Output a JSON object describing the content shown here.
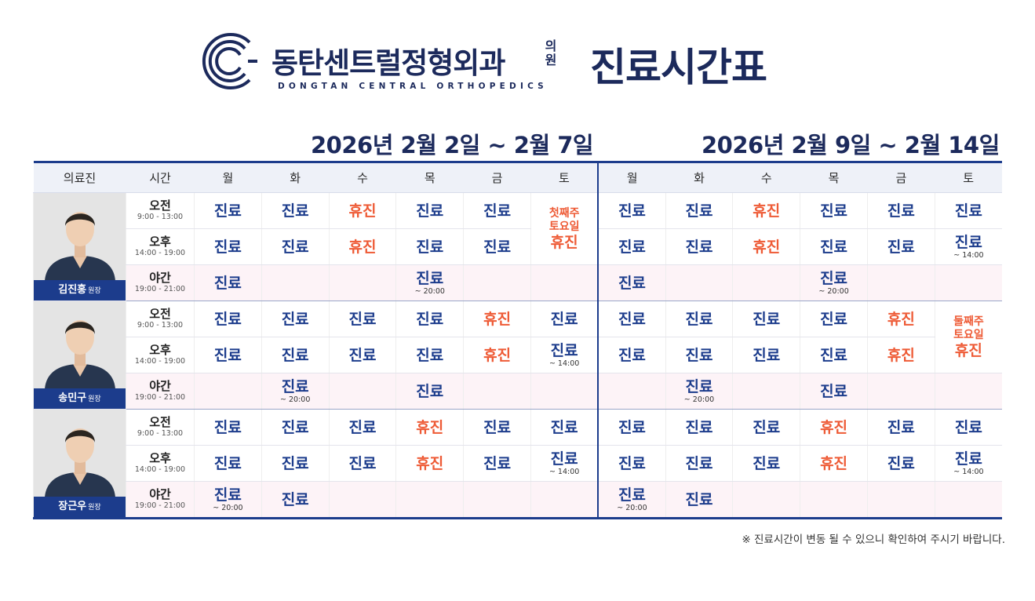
{
  "header": {
    "brand_ko": "동탄센트럴정형외과",
    "brand_ui": "의원",
    "brand_en": "DONGTAN CENTRAL ORTHOPEDICS",
    "title": "진료시간표"
  },
  "weeks": [
    "2026년 2월 2일 ~ 2월 7일",
    "2026년 2월 9일 ~ 2월 14일"
  ],
  "columns": {
    "doctor": "의료진",
    "time": "시간",
    "days": [
      "월",
      "화",
      "수",
      "목",
      "금",
      "토",
      "월",
      "화",
      "수",
      "목",
      "금",
      "토"
    ]
  },
  "periods": {
    "am": {
      "label": "오전",
      "hours": "9:00 - 13:00"
    },
    "pm": {
      "label": "오후",
      "hours": "14:00 - 19:00"
    },
    "night": {
      "label": "야간",
      "hours": "19:00 - 21:00"
    }
  },
  "doctors": [
    {
      "name": "김진홍",
      "title": "원장",
      "am": [
        [
          "진료",
          ""
        ],
        [
          "진료",
          ""
        ],
        [
          "휴진",
          ""
        ],
        [
          "진료",
          ""
        ],
        [
          "진료",
          ""
        ],
        null,
        [
          "진료",
          ""
        ],
        [
          "진료",
          ""
        ],
        [
          "휴진",
          ""
        ],
        [
          "진료",
          ""
        ],
        [
          "진료",
          ""
        ],
        [
          "진료",
          ""
        ]
      ],
      "pm": [
        [
          "진료",
          ""
        ],
        [
          "진료",
          ""
        ],
        [
          "휴진",
          ""
        ],
        [
          "진료",
          ""
        ],
        [
          "진료",
          ""
        ],
        null,
        [
          "진료",
          ""
        ],
        [
          "진료",
          ""
        ],
        [
          "휴진",
          ""
        ],
        [
          "진료",
          ""
        ],
        [
          "진료",
          ""
        ],
        [
          "진료",
          "~ 14:00"
        ]
      ],
      "night": [
        [
          "진료",
          ""
        ],
        [
          "",
          ""
        ],
        [
          "",
          ""
        ],
        [
          "진료",
          "~ 20:00"
        ],
        [
          "",
          ""
        ],
        [
          "",
          ""
        ],
        [
          "진료",
          ""
        ],
        [
          "",
          ""
        ],
        [
          "",
          ""
        ],
        [
          "진료",
          "~ 20:00"
        ],
        [
          "",
          ""
        ],
        [
          "",
          ""
        ]
      ],
      "merged": {
        "col": 5,
        "line1": "첫째주",
        "line2": "토요일",
        "status": "휴진"
      }
    },
    {
      "name": "송민구",
      "title": "원장",
      "am": [
        [
          "진료",
          ""
        ],
        [
          "진료",
          ""
        ],
        [
          "진료",
          ""
        ],
        [
          "진료",
          ""
        ],
        [
          "휴진",
          ""
        ],
        [
          "진료",
          ""
        ],
        [
          "진료",
          ""
        ],
        [
          "진료",
          ""
        ],
        [
          "진료",
          ""
        ],
        [
          "진료",
          ""
        ],
        [
          "휴진",
          ""
        ],
        null
      ],
      "pm": [
        [
          "진료",
          ""
        ],
        [
          "진료",
          ""
        ],
        [
          "진료",
          ""
        ],
        [
          "진료",
          ""
        ],
        [
          "휴진",
          ""
        ],
        [
          "진료",
          "~ 14:00"
        ],
        [
          "진료",
          ""
        ],
        [
          "진료",
          ""
        ],
        [
          "진료",
          ""
        ],
        [
          "진료",
          ""
        ],
        [
          "휴진",
          ""
        ],
        null
      ],
      "night": [
        [
          "",
          ""
        ],
        [
          "진료",
          "~ 20:00"
        ],
        [
          "",
          ""
        ],
        [
          "진료",
          ""
        ],
        [
          "",
          ""
        ],
        [
          "",
          ""
        ],
        [
          "",
          ""
        ],
        [
          "진료",
          "~ 20:00"
        ],
        [
          "",
          ""
        ],
        [
          "진료",
          ""
        ],
        [
          "",
          ""
        ],
        [
          "",
          ""
        ]
      ],
      "merged": {
        "col": 11,
        "line1": "둘째주",
        "line2": "토요일",
        "status": "휴진"
      }
    },
    {
      "name": "장근우",
      "title": "원장",
      "am": [
        [
          "진료",
          ""
        ],
        [
          "진료",
          ""
        ],
        [
          "진료",
          ""
        ],
        [
          "휴진",
          ""
        ],
        [
          "진료",
          ""
        ],
        [
          "진료",
          ""
        ],
        [
          "진료",
          ""
        ],
        [
          "진료",
          ""
        ],
        [
          "진료",
          ""
        ],
        [
          "휴진",
          ""
        ],
        [
          "진료",
          ""
        ],
        [
          "진료",
          ""
        ]
      ],
      "pm": [
        [
          "진료",
          ""
        ],
        [
          "진료",
          ""
        ],
        [
          "진료",
          ""
        ],
        [
          "휴진",
          ""
        ],
        [
          "진료",
          ""
        ],
        [
          "진료",
          "~ 14:00"
        ],
        [
          "진료",
          ""
        ],
        [
          "진료",
          ""
        ],
        [
          "진료",
          ""
        ],
        [
          "휴진",
          ""
        ],
        [
          "진료",
          ""
        ],
        [
          "진료",
          "~ 14:00"
        ]
      ],
      "night": [
        [
          "진료",
          "~ 20:00"
        ],
        [
          "진료",
          ""
        ],
        [
          "",
          ""
        ],
        [
          "",
          ""
        ],
        [
          "",
          ""
        ],
        [
          "",
          ""
        ],
        [
          "진료",
          "~ 20:00"
        ],
        [
          "진료",
          ""
        ],
        [
          "",
          ""
        ],
        [
          "",
          ""
        ],
        [
          "",
          ""
        ],
        [
          "",
          ""
        ]
      ],
      "merged": null
    }
  ],
  "colors": {
    "primary": "#1c3c8c",
    "off": "#ee5a35",
    "night_bg": "#fdf3f7"
  },
  "footnote": "※ 진료시간이 변동 될 수 있으니 확인하여 주시기 바랍니다."
}
